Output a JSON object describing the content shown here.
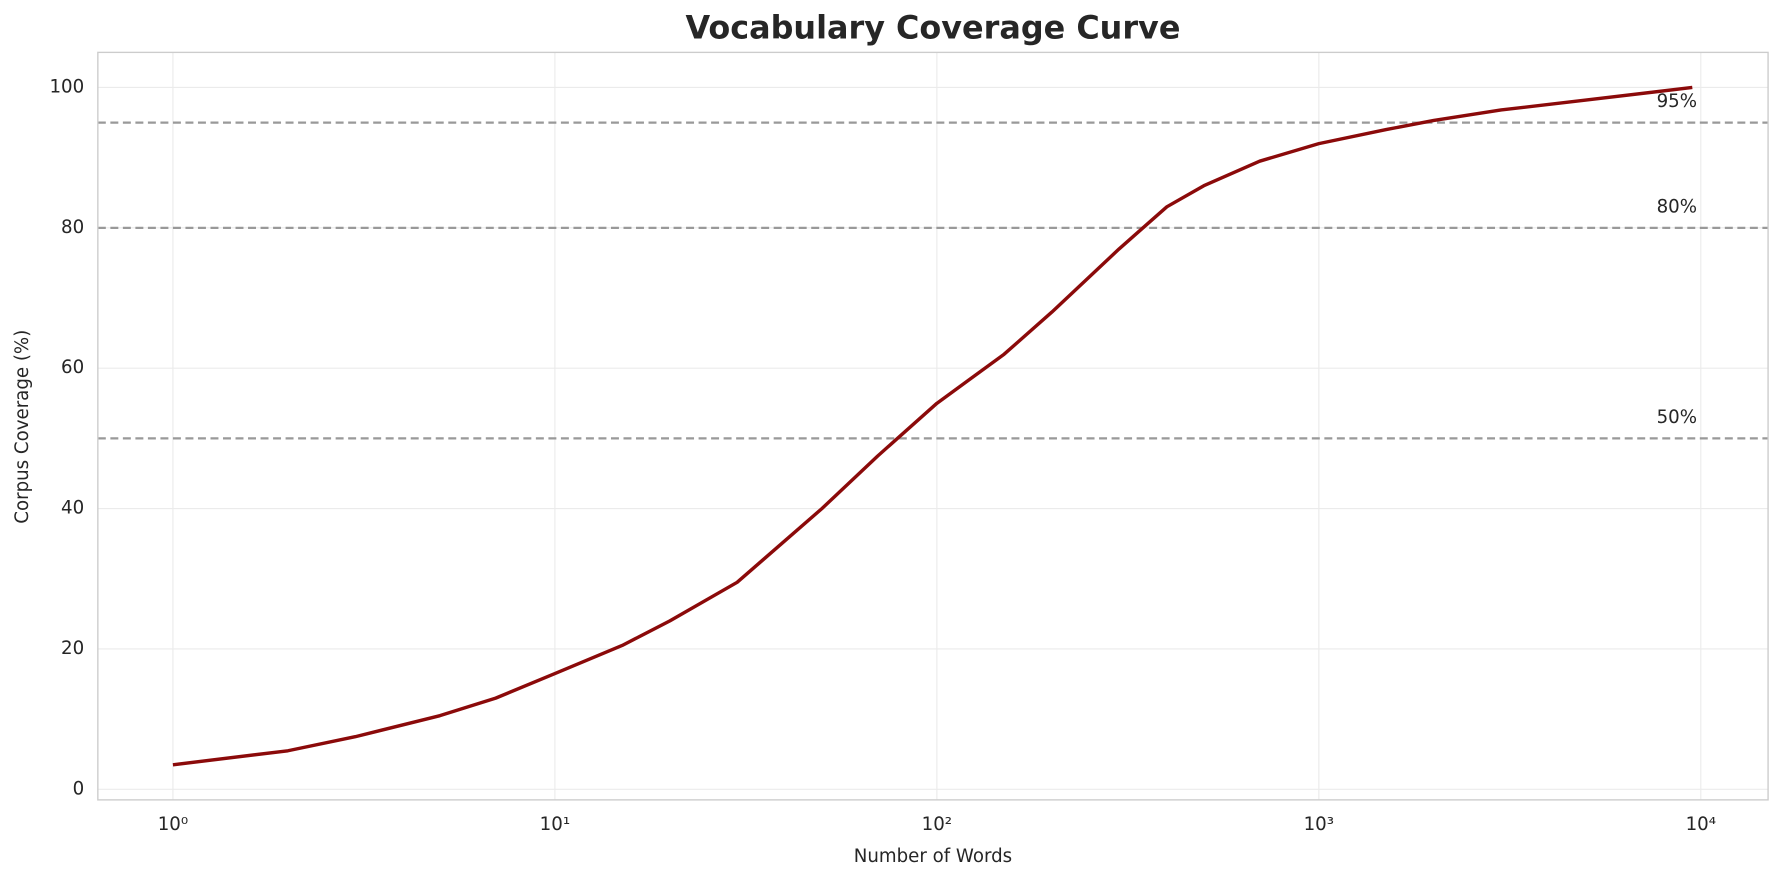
{
  "chart_data": {
    "type": "line",
    "title": "Vocabulary Coverage Curve",
    "x_label": "Number of Words",
    "y_label": "Corpus Coverage (%)",
    "x": [
      1,
      2,
      3,
      5,
      7,
      10,
      15,
      20,
      30,
      50,
      70,
      100,
      150,
      200,
      300,
      400,
      500,
      700,
      1000,
      1500,
      2000,
      3000,
      5000,
      9500
    ],
    "values": [
      3.5,
      5.5,
      7.5,
      10.5,
      13,
      16.5,
      20.5,
      24,
      29.5,
      40,
      47.5,
      55,
      62,
      68,
      77,
      83,
      86,
      89.5,
      92,
      94,
      95.3,
      96.8,
      98.2,
      100
    ],
    "color": "#8b0a0a",
    "x_scale": "log",
    "xlim": [
      0.636,
      15000
    ],
    "xticks": [
      {
        "value": 1,
        "label": "10⁰"
      },
      {
        "value": 10,
        "label": "10¹"
      },
      {
        "value": 100,
        "label": "10²"
      },
      {
        "value": 1000,
        "label": "10³"
      },
      {
        "value": 10000,
        "label": "10⁴"
      }
    ],
    "ylim": [
      -1.5,
      105
    ],
    "yticks": [
      0,
      20,
      40,
      60,
      80,
      100
    ],
    "grid": true,
    "reference_lines": [
      {
        "value": 95,
        "label": "95%"
      },
      {
        "value": 80,
        "label": "80%"
      },
      {
        "value": 50,
        "label": "50%"
      }
    ],
    "reference_color": "#999999"
  }
}
